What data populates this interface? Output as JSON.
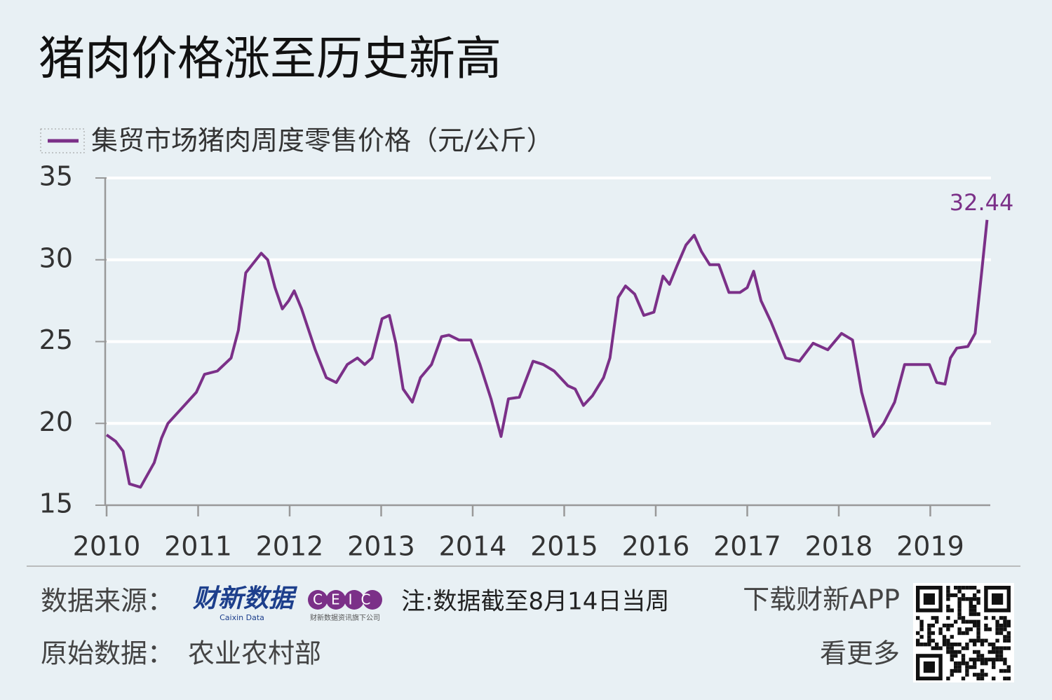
{
  "chart_data": {
    "type": "line",
    "title": "猪肉价格涨至历史新高",
    "x": [
      2010.0,
      2010.1,
      2010.18,
      2010.25,
      2010.37,
      2010.52,
      2010.6,
      2010.67,
      2010.98,
      2011.07,
      2011.21,
      2011.36,
      2011.44,
      2011.52,
      2011.59,
      2011.69,
      2011.76,
      2011.84,
      2011.92,
      2011.99,
      2012.05,
      2012.13,
      2012.28,
      2012.4,
      2012.51,
      2012.63,
      2012.74,
      2012.82,
      2012.9,
      2013.01,
      2013.09,
      2013.16,
      2013.24,
      2013.34,
      2013.43,
      2013.55,
      2013.66,
      2013.74,
      2013.85,
      2013.98,
      2014.08,
      2014.2,
      2014.31,
      2014.39,
      2014.51,
      2014.66,
      2014.77,
      2014.89,
      2015.04,
      2015.12,
      2015.21,
      2015.31,
      2015.43,
      2015.5,
      2015.59,
      2015.67,
      2015.77,
      2015.87,
      2015.98,
      2016.08,
      2016.15,
      2016.23,
      2016.33,
      2016.42,
      2016.5,
      2016.59,
      2016.69,
      2016.8,
      2016.92,
      2017.0,
      2017.07,
      2017.15,
      2017.26,
      2017.42,
      2017.57,
      2017.72,
      2017.88,
      2018.03,
      2018.15,
      2018.25,
      2018.38,
      2018.49,
      2018.61,
      2018.72,
      2018.87,
      2018.99,
      2019.07,
      2019.16,
      2019.22,
      2019.29,
      2019.41,
      2019.49,
      2019.56,
      2019.62
    ],
    "series": [
      {
        "name": "集贸市场猪肉周度零售价格（元/公斤）",
        "color": "#7b3088",
        "values": [
          19.3,
          18.9,
          18.3,
          16.3,
          16.1,
          17.6,
          19.1,
          20.0,
          21.9,
          23.0,
          23.2,
          24.0,
          25.7,
          29.2,
          29.7,
          30.4,
          30.0,
          28.3,
          27.0,
          27.5,
          28.1,
          27.0,
          24.5,
          22.8,
          22.5,
          23.6,
          24.0,
          23.6,
          24.0,
          26.4,
          26.6,
          24.9,
          22.1,
          21.3,
          22.8,
          23.6,
          25.3,
          25.4,
          25.1,
          25.1,
          23.6,
          21.5,
          19.2,
          21.5,
          21.6,
          23.8,
          23.6,
          23.2,
          22.3,
          22.1,
          21.1,
          21.7,
          22.8,
          24.0,
          27.7,
          28.4,
          27.9,
          26.6,
          26.8,
          29.0,
          28.5,
          29.6,
          30.9,
          31.5,
          30.5,
          29.7,
          29.7,
          28.0,
          28.0,
          28.3,
          29.3,
          27.5,
          26.2,
          24.0,
          23.8,
          24.9,
          24.5,
          25.5,
          25.1,
          21.9,
          19.2,
          20.0,
          21.3,
          23.6,
          23.6,
          23.6,
          22.5,
          22.4,
          24.0,
          24.6,
          24.7,
          25.5,
          29.2,
          32.44
        ]
      }
    ],
    "xlim": [
      2010,
      2019.64
    ],
    "xticks": [
      2010,
      2011,
      2012,
      2013,
      2014,
      2015,
      2016,
      2017,
      2018,
      2019
    ],
    "ylim": [
      15,
      35
    ],
    "yticks": [
      15,
      20,
      25,
      30,
      35
    ],
    "grid": true
  },
  "footer": {
    "source_label": "数据来源：",
    "logo_text": "财新数据",
    "logo_sub": "Caixin Data",
    "ceic": "CEIC",
    "ceic_sub": "财新数据资讯旗下公司",
    "note": "注:数据截至8月14日当周",
    "download": "下载财新APP",
    "more": "看更多",
    "raw_label": "原始数据：",
    "raw_source": "农业农村部"
  }
}
